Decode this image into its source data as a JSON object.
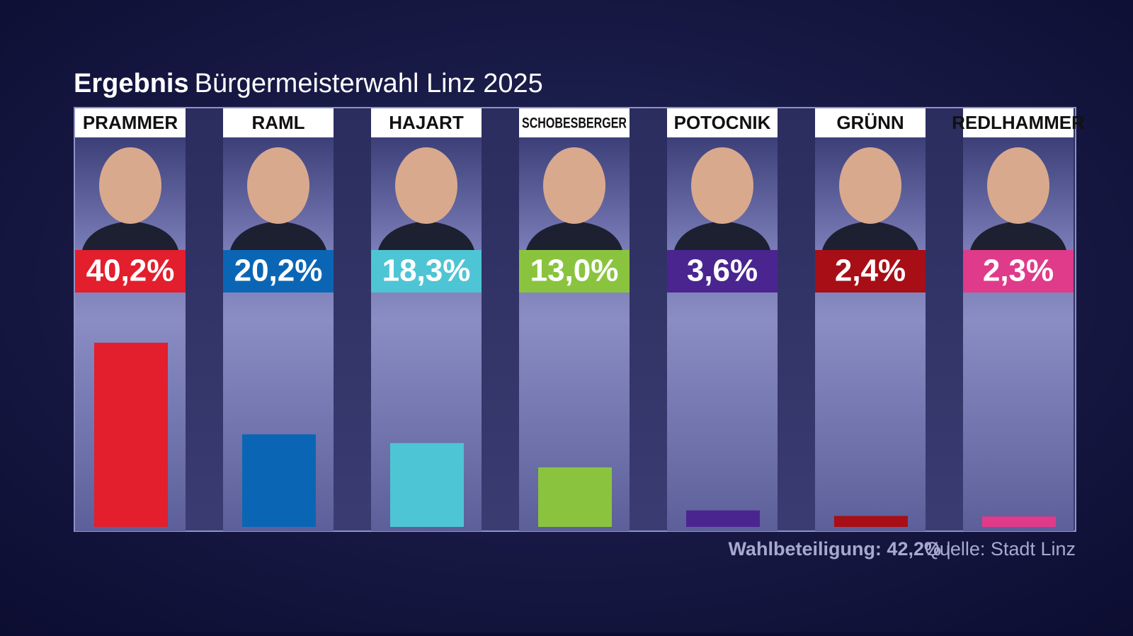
{
  "chart_data": {
    "type": "bar",
    "title": "Ergebnis",
    "subtitle": "Bürgermeisterwahl Linz 2025",
    "categories": [
      "PRAMMER",
      "RAML",
      "HAJART",
      "SCHOBESBERGER",
      "POTOCNIK",
      "GRÜNN",
      "REDLHAMMER"
    ],
    "values": [
      40.2,
      20.2,
      18.3,
      13.0,
      3.6,
      2.4,
      2.3
    ],
    "value_labels": [
      "40,2%",
      "20,2%",
      "18,3%",
      "13,0%",
      "3,6%",
      "2,4%",
      "2,3%"
    ],
    "colors": [
      "#e31e2d",
      "#0a66b5",
      "#4ec5d4",
      "#8ac43f",
      "#4a2590",
      "#a80e16",
      "#e03a8a"
    ],
    "notes": [
      "Wahlbeteiligung: 42,2%",
      "Quelle: Stadt Linz"
    ]
  }
}
